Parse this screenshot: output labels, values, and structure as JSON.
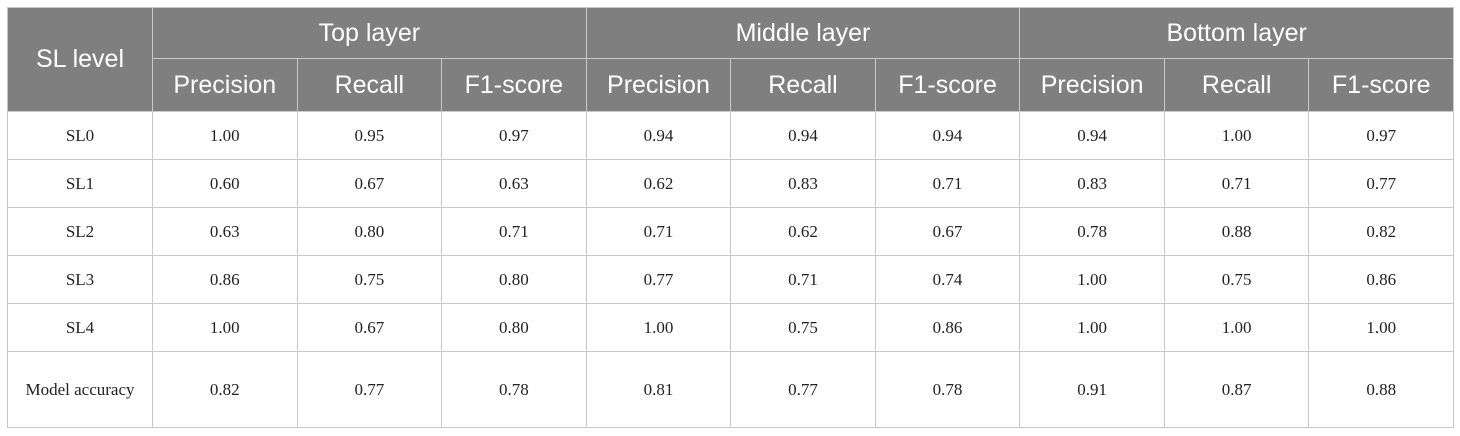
{
  "table": {
    "corner_header": "SL level",
    "groups": [
      "Top layer",
      "Middle layer",
      "Bottom layer"
    ],
    "metrics": [
      "Precision",
      "Recall",
      "F1-score",
      "Precision",
      "Recall",
      "F1-score",
      "Precision",
      "Recall",
      "F1-score"
    ],
    "rows": [
      {
        "level": "SL0",
        "values": [
          "1.00",
          "0.95",
          "0.97",
          "0.94",
          "0.94",
          "0.94",
          "0.94",
          "1.00",
          "0.97"
        ]
      },
      {
        "level": "SL1",
        "values": [
          "0.60",
          "0.67",
          "0.63",
          "0.62",
          "0.83",
          "0.71",
          "0.83",
          "0.71",
          "0.77"
        ]
      },
      {
        "level": "SL2",
        "values": [
          "0.63",
          "0.80",
          "0.71",
          "0.71",
          "0.62",
          "0.67",
          "0.78",
          "0.88",
          "0.82"
        ]
      },
      {
        "level": "SL3",
        "values": [
          "0.86",
          "0.75",
          "0.80",
          "0.77",
          "0.71",
          "0.74",
          "1.00",
          "0.75",
          "0.86"
        ]
      },
      {
        "level": "SL4",
        "values": [
          "1.00",
          "0.67",
          "0.80",
          "1.00",
          "0.75",
          "0.86",
          "1.00",
          "1.00",
          "1.00"
        ]
      },
      {
        "level": "Model accuracy",
        "values": [
          "0.82",
          "0.77",
          "0.78",
          "0.81",
          "0.77",
          "0.78",
          "0.91",
          "0.87",
          "0.88"
        ]
      }
    ]
  }
}
